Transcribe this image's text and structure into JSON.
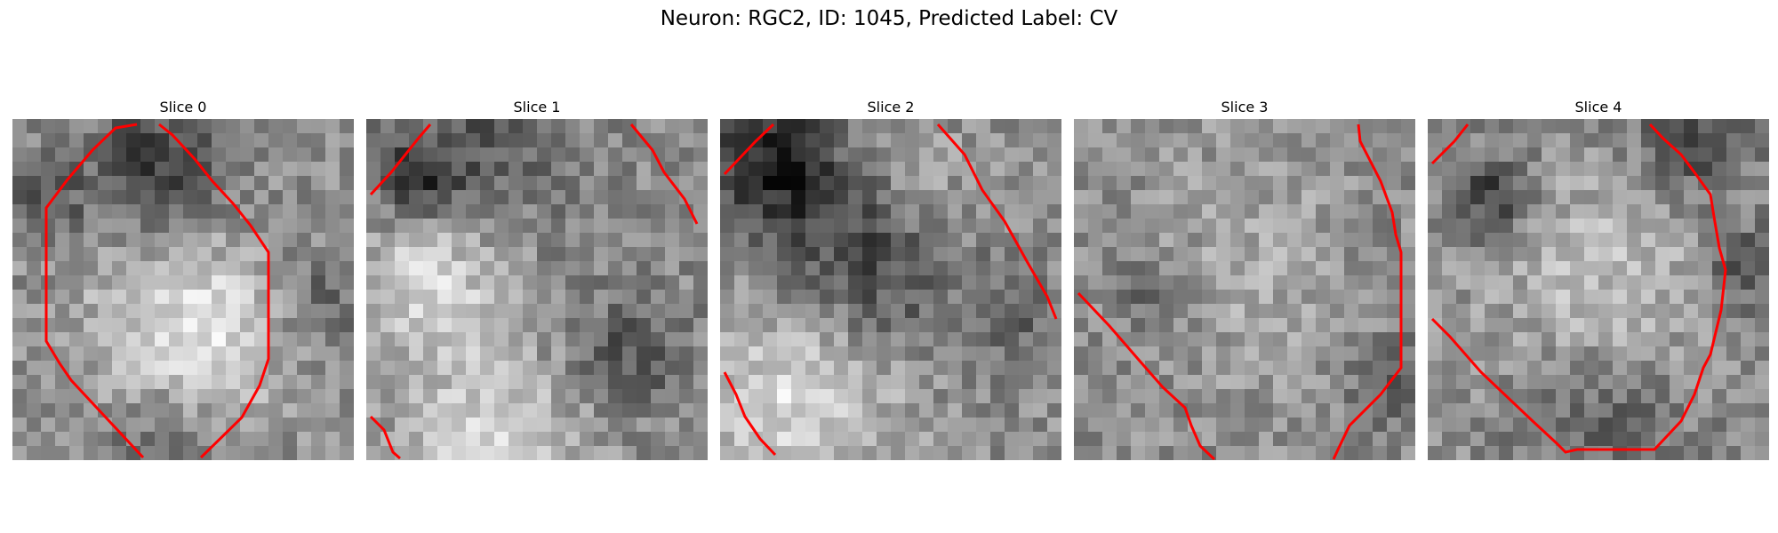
{
  "figure": {
    "title": "Neuron: RGC2, ID: 1045, Predicted Label: CV"
  },
  "colors": {
    "contour": "#ff0000",
    "background": "#ffffff"
  },
  "slices": [
    {
      "title": "Slice 0"
    },
    {
      "title": "Slice 1"
    },
    {
      "title": "Slice 2"
    },
    {
      "title": "Slice 3"
    },
    {
      "title": "Slice 4"
    }
  ]
}
